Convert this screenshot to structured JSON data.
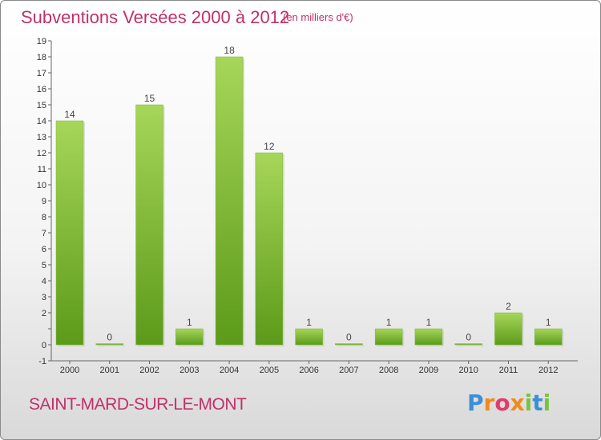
{
  "header": {
    "title": "Subventions Versées 2000 à 2012",
    "subtitle": "(en milliers d'€)"
  },
  "footer": {
    "place": "SAINT-MARD-SUR-LE-MONT",
    "logo_text": "Proxiti"
  },
  "colors": {
    "title": "#c0306a",
    "bar_light": "#9fd14f",
    "bar_dark": "#5f9a1c"
  },
  "chart_data": {
    "type": "bar",
    "categories": [
      "2000",
      "2001",
      "2002",
      "2003",
      "2004",
      "2005",
      "2006",
      "2007",
      "2008",
      "2009",
      "2010",
      "2011",
      "2012"
    ],
    "values": [
      14,
      0,
      15,
      1,
      18,
      12,
      1,
      0,
      1,
      1,
      0,
      2,
      1
    ],
    "data_labels": [
      "14",
      "0",
      "15",
      "1",
      "18",
      "12",
      "1",
      "0",
      "1",
      "1",
      "0",
      "2",
      "1"
    ],
    "yticks": [
      "-1",
      "0",
      "",
      "2",
      "3",
      "4",
      "5",
      "6",
      "7",
      "8",
      "9",
      "10",
      "11",
      "12",
      "13",
      "14",
      "15",
      "16",
      "17",
      "18",
      "19"
    ],
    "ylim": [
      -1,
      19
    ],
    "grid": false,
    "legend": "none"
  }
}
